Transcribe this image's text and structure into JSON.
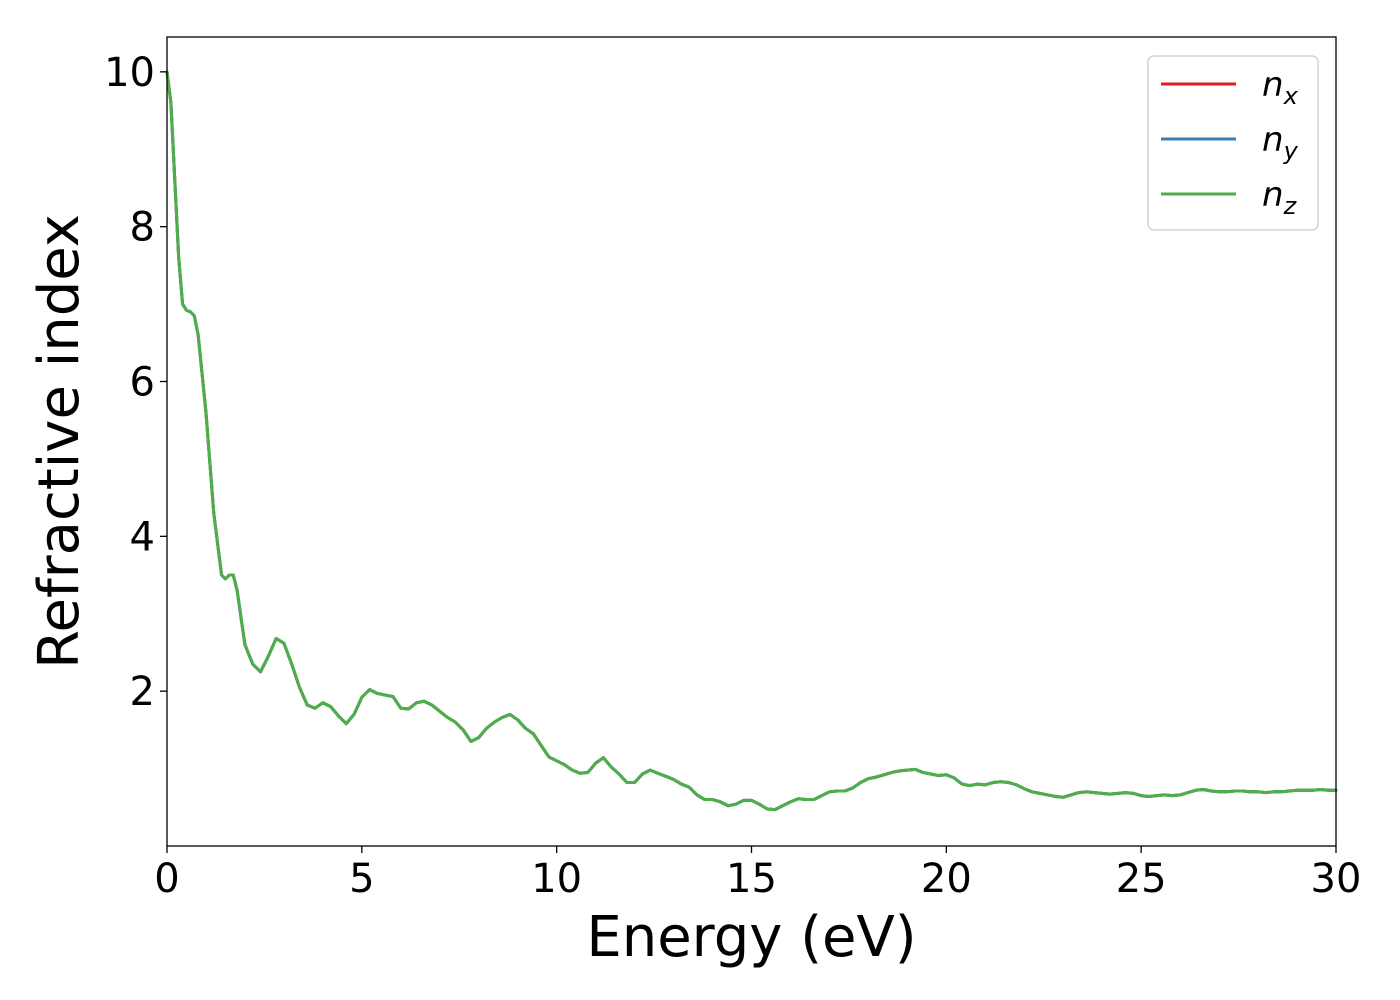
{
  "chart_data": {
    "type": "line",
    "xlabel": "Energy (eV)",
    "ylabel": "Refractive index",
    "xlim": [
      0,
      30
    ],
    "ylim": [
      0,
      10.45
    ],
    "xticks": [
      0,
      5,
      10,
      15,
      20,
      25,
      30
    ],
    "yticks": [
      2,
      4,
      6,
      8,
      10
    ],
    "x_tick_labels": [
      "0",
      "5",
      "10",
      "15",
      "20",
      "25",
      "30"
    ],
    "y_tick_labels": [
      "2",
      "4",
      "6",
      "8",
      "10"
    ],
    "grid": false,
    "legend_position": "top-right",
    "x": [
      0.0,
      0.1,
      0.2,
      0.3,
      0.4,
      0.5,
      0.6,
      0.7,
      0.8,
      1.0,
      1.2,
      1.4,
      1.5,
      1.6,
      1.7,
      1.8,
      2.0,
      2.2,
      2.4,
      2.6,
      2.8,
      3.0,
      3.2,
      3.4,
      3.6,
      3.8,
      4.0,
      4.2,
      4.4,
      4.6,
      4.8,
      5.0,
      5.2,
      5.4,
      5.6,
      5.8,
      6.0,
      6.2,
      6.4,
      6.6,
      6.8,
      7.0,
      7.2,
      7.4,
      7.6,
      7.8,
      8.0,
      8.2,
      8.4,
      8.6,
      8.8,
      9.0,
      9.2,
      9.4,
      9.6,
      9.8,
      10.0,
      10.2,
      10.4,
      10.6,
      10.8,
      11.0,
      11.2,
      11.4,
      11.6,
      11.8,
      12.0,
      12.2,
      12.4,
      12.6,
      12.8,
      13.0,
      13.2,
      13.4,
      13.6,
      13.8,
      14.0,
      14.2,
      14.4,
      14.6,
      14.8,
      15.0,
      15.2,
      15.4,
      15.6,
      15.8,
      16.0,
      16.2,
      16.4,
      16.6,
      16.8,
      17.0,
      17.2,
      17.4,
      17.6,
      17.8,
      18.0,
      18.2,
      18.4,
      18.6,
      18.8,
      19.0,
      19.2,
      19.4,
      19.6,
      19.8,
      20.0,
      20.2,
      20.4,
      20.6,
      20.8,
      21.0,
      21.2,
      21.4,
      21.6,
      21.8,
      22.0,
      22.2,
      22.4,
      22.6,
      22.8,
      23.0,
      23.2,
      23.4,
      23.6,
      23.8,
      24.0,
      24.2,
      24.4,
      24.6,
      24.8,
      25.0,
      25.2,
      25.4,
      25.6,
      25.8,
      26.0,
      26.2,
      26.4,
      26.6,
      26.8,
      27.0,
      27.2,
      27.4,
      27.6,
      27.8,
      28.0,
      28.2,
      28.4,
      28.6,
      28.8,
      29.0,
      29.2,
      29.4,
      29.6,
      29.8,
      30.0
    ],
    "series": [
      {
        "name": "n_x",
        "color": "#e41a1c",
        "values": [
          10.0,
          9.6,
          8.6,
          7.6,
          7.0,
          6.92,
          6.9,
          6.85,
          6.6,
          5.6,
          4.3,
          3.5,
          3.45,
          3.5,
          3.5,
          3.3,
          2.6,
          2.35,
          2.25,
          2.45,
          2.68,
          2.62,
          2.35,
          2.05,
          1.82,
          1.78,
          1.85,
          1.8,
          1.68,
          1.58,
          1.7,
          1.92,
          2.02,
          1.97,
          1.95,
          1.93,
          1.78,
          1.77,
          1.85,
          1.87,
          1.82,
          1.74,
          1.66,
          1.6,
          1.5,
          1.35,
          1.4,
          1.52,
          1.6,
          1.66,
          1.7,
          1.63,
          1.52,
          1.45,
          1.3,
          1.15,
          1.1,
          1.05,
          0.98,
          0.94,
          0.95,
          1.07,
          1.14,
          1.02,
          0.93,
          0.82,
          0.82,
          0.93,
          0.98,
          0.94,
          0.9,
          0.86,
          0.8,
          0.76,
          0.66,
          0.6,
          0.6,
          0.57,
          0.52,
          0.54,
          0.59,
          0.59,
          0.54,
          0.48,
          0.47,
          0.52,
          0.57,
          0.61,
          0.6,
          0.6,
          0.65,
          0.7,
          0.71,
          0.71,
          0.75,
          0.82,
          0.87,
          0.89,
          0.92,
          0.95,
          0.97,
          0.98,
          0.99,
          0.95,
          0.93,
          0.91,
          0.92,
          0.88,
          0.8,
          0.78,
          0.8,
          0.79,
          0.82,
          0.83,
          0.82,
          0.79,
          0.74,
          0.7,
          0.68,
          0.66,
          0.64,
          0.63,
          0.66,
          0.69,
          0.7,
          0.69,
          0.68,
          0.67,
          0.68,
          0.69,
          0.68,
          0.65,
          0.64,
          0.65,
          0.66,
          0.65,
          0.66,
          0.69,
          0.72,
          0.73,
          0.71,
          0.7,
          0.7,
          0.71,
          0.71,
          0.7,
          0.7,
          0.69,
          0.7,
          0.7,
          0.71,
          0.72,
          0.72,
          0.72,
          0.73,
          0.72,
          0.72
        ]
      },
      {
        "name": "n_y",
        "color": "#377eb8",
        "values": [
          10.0,
          9.6,
          8.6,
          7.6,
          7.0,
          6.92,
          6.9,
          6.85,
          6.6,
          5.6,
          4.3,
          3.5,
          3.45,
          3.5,
          3.5,
          3.3,
          2.6,
          2.35,
          2.25,
          2.45,
          2.68,
          2.62,
          2.35,
          2.05,
          1.82,
          1.78,
          1.85,
          1.8,
          1.68,
          1.58,
          1.7,
          1.92,
          2.02,
          1.97,
          1.95,
          1.93,
          1.78,
          1.77,
          1.85,
          1.87,
          1.82,
          1.74,
          1.66,
          1.6,
          1.5,
          1.35,
          1.4,
          1.52,
          1.6,
          1.66,
          1.7,
          1.63,
          1.52,
          1.45,
          1.3,
          1.15,
          1.1,
          1.05,
          0.98,
          0.94,
          0.95,
          1.07,
          1.14,
          1.02,
          0.93,
          0.82,
          0.82,
          0.93,
          0.98,
          0.94,
          0.9,
          0.86,
          0.8,
          0.76,
          0.66,
          0.6,
          0.6,
          0.57,
          0.52,
          0.54,
          0.59,
          0.59,
          0.54,
          0.48,
          0.47,
          0.52,
          0.57,
          0.61,
          0.6,
          0.6,
          0.65,
          0.7,
          0.71,
          0.71,
          0.75,
          0.82,
          0.87,
          0.89,
          0.92,
          0.95,
          0.97,
          0.98,
          0.99,
          0.95,
          0.93,
          0.91,
          0.92,
          0.88,
          0.8,
          0.78,
          0.8,
          0.79,
          0.82,
          0.83,
          0.82,
          0.79,
          0.74,
          0.7,
          0.68,
          0.66,
          0.64,
          0.63,
          0.66,
          0.69,
          0.7,
          0.69,
          0.68,
          0.67,
          0.68,
          0.69,
          0.68,
          0.65,
          0.64,
          0.65,
          0.66,
          0.65,
          0.66,
          0.69,
          0.72,
          0.73,
          0.71,
          0.7,
          0.7,
          0.71,
          0.71,
          0.7,
          0.7,
          0.69,
          0.7,
          0.7,
          0.71,
          0.72,
          0.72,
          0.72,
          0.73,
          0.72,
          0.72
        ]
      },
      {
        "name": "n_z",
        "color": "#4daf4a",
        "values": [
          10.0,
          9.6,
          8.6,
          7.6,
          7.0,
          6.92,
          6.9,
          6.85,
          6.6,
          5.6,
          4.3,
          3.5,
          3.45,
          3.5,
          3.5,
          3.3,
          2.6,
          2.35,
          2.25,
          2.45,
          2.68,
          2.62,
          2.35,
          2.05,
          1.82,
          1.78,
          1.85,
          1.8,
          1.68,
          1.58,
          1.7,
          1.92,
          2.02,
          1.97,
          1.95,
          1.93,
          1.78,
          1.77,
          1.85,
          1.87,
          1.82,
          1.74,
          1.66,
          1.6,
          1.5,
          1.35,
          1.4,
          1.52,
          1.6,
          1.66,
          1.7,
          1.63,
          1.52,
          1.45,
          1.3,
          1.15,
          1.1,
          1.05,
          0.98,
          0.94,
          0.95,
          1.07,
          1.14,
          1.02,
          0.93,
          0.82,
          0.82,
          0.93,
          0.98,
          0.94,
          0.9,
          0.86,
          0.8,
          0.76,
          0.66,
          0.6,
          0.6,
          0.57,
          0.52,
          0.54,
          0.59,
          0.59,
          0.54,
          0.48,
          0.47,
          0.52,
          0.57,
          0.61,
          0.6,
          0.6,
          0.65,
          0.7,
          0.71,
          0.71,
          0.75,
          0.82,
          0.87,
          0.89,
          0.92,
          0.95,
          0.97,
          0.98,
          0.99,
          0.95,
          0.93,
          0.91,
          0.92,
          0.88,
          0.8,
          0.78,
          0.8,
          0.79,
          0.82,
          0.83,
          0.82,
          0.79,
          0.74,
          0.7,
          0.68,
          0.66,
          0.64,
          0.63,
          0.66,
          0.69,
          0.7,
          0.69,
          0.68,
          0.67,
          0.68,
          0.69,
          0.68,
          0.65,
          0.64,
          0.65,
          0.66,
          0.65,
          0.66,
          0.69,
          0.72,
          0.73,
          0.71,
          0.7,
          0.7,
          0.71,
          0.71,
          0.7,
          0.7,
          0.69,
          0.7,
          0.7,
          0.71,
          0.72,
          0.72,
          0.72,
          0.73,
          0.72,
          0.72
        ]
      }
    ],
    "legend": [
      {
        "base": "n",
        "sub": "x"
      },
      {
        "base": "n",
        "sub": "y"
      },
      {
        "base": "n",
        "sub": "z"
      }
    ]
  }
}
